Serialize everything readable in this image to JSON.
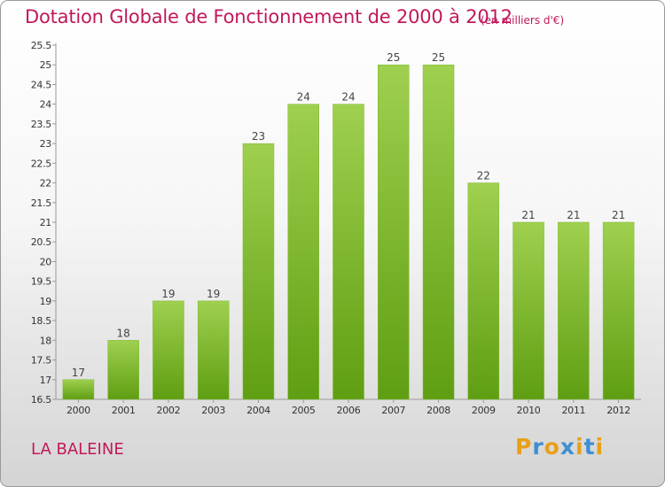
{
  "title": "Dotation Globale de Fonctionnement de 2000 à 2012",
  "subtitle": "(en milliers d'€)",
  "commune": "LA BALEINE",
  "logo": {
    "letters": [
      "P",
      "r",
      "o",
      "x",
      "i",
      "t",
      "i"
    ],
    "colors": [
      "#e8a018",
      "#3d8fd1",
      "#e8a018",
      "#3d8fd1",
      "#e8a018",
      "#3d8fd1",
      "#e8a018"
    ]
  },
  "colors": {
    "title": "#c2185b",
    "bar_top": "#9fd04f",
    "bar_bottom": "#5f9e12",
    "axis": "#999999"
  },
  "chart_data": {
    "type": "bar",
    "categories": [
      "2000",
      "2001",
      "2002",
      "2003",
      "2004",
      "2005",
      "2006",
      "2007",
      "2008",
      "2009",
      "2010",
      "2011",
      "2012"
    ],
    "values": [
      17,
      18,
      19,
      19,
      23,
      24,
      24,
      25,
      25,
      22,
      21,
      21,
      21
    ],
    "data_labels": [
      "17",
      "18",
      "19",
      "19",
      "23",
      "24",
      "24",
      "25",
      "25",
      "22",
      "21",
      "21",
      "21"
    ],
    "yticks": [
      "16.5",
      "17",
      "17.5",
      "18",
      "18.5",
      "19",
      "19.5",
      "20",
      "20.5",
      "21",
      "21.5",
      "22",
      "22.5",
      "23",
      "23.5",
      "24",
      "24.5",
      "25",
      "25.5"
    ],
    "ylim": [
      16.5,
      25.5
    ],
    "grid": false,
    "legend": "none"
  }
}
